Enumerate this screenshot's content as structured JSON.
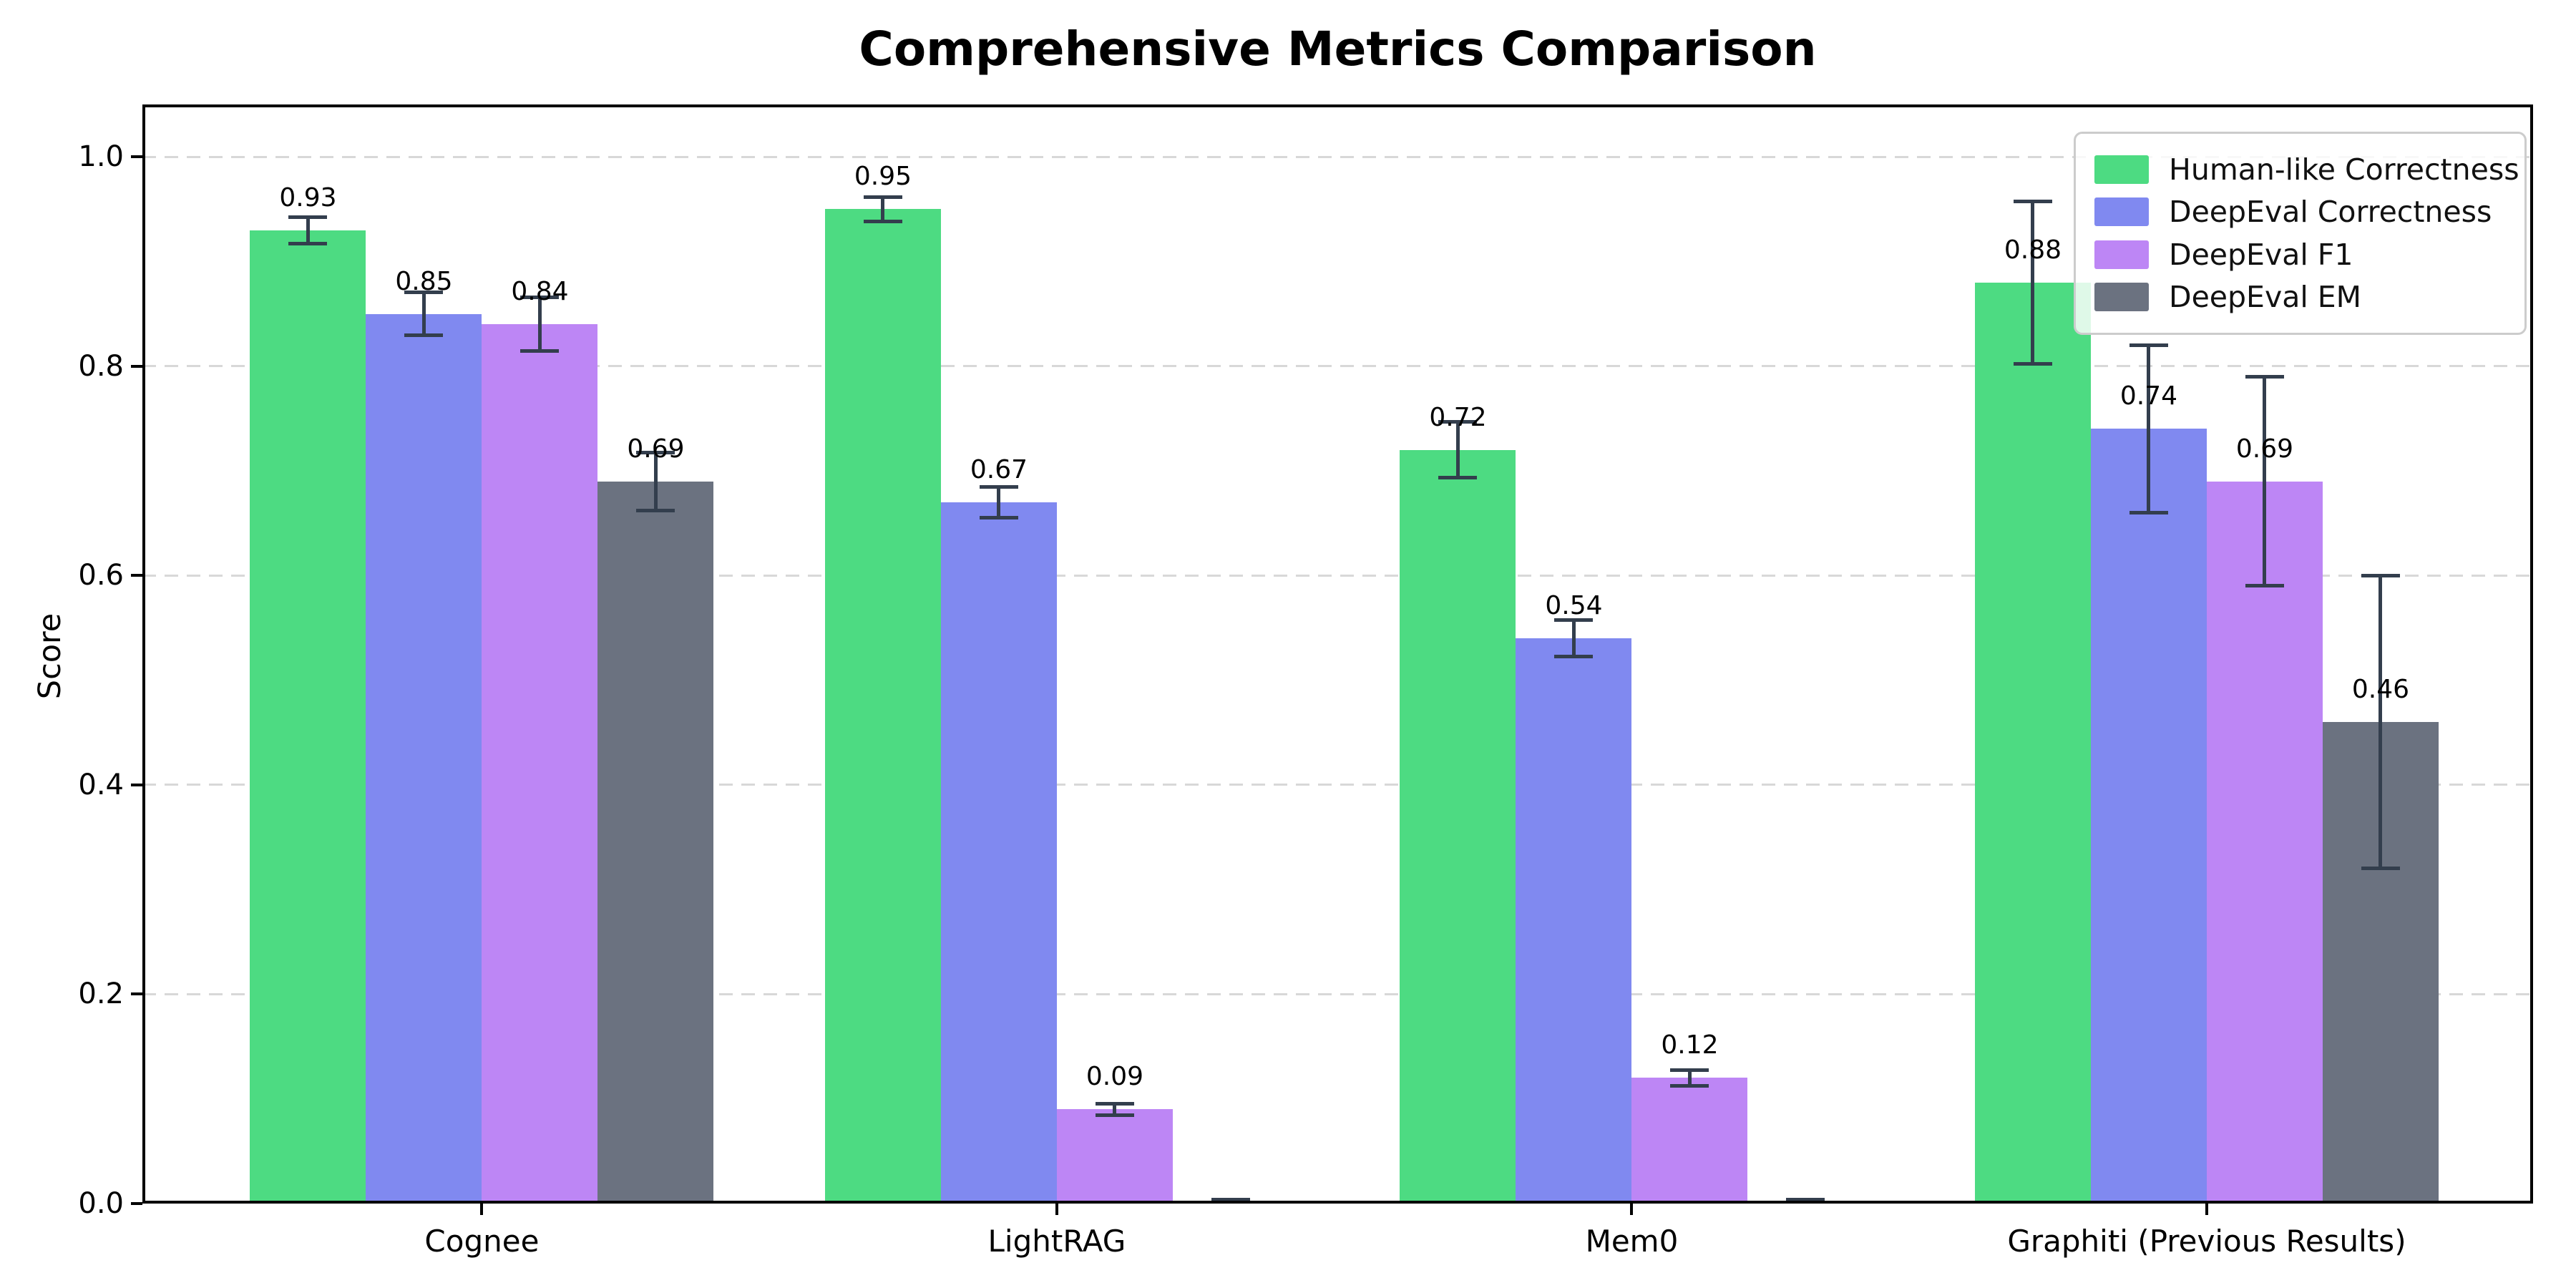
{
  "title": "Comprehensive Metrics Comparison",
  "chart_data": {
    "type": "bar",
    "title": "Comprehensive Metrics Comparison",
    "xlabel": "",
    "ylabel": "Score",
    "ylim": [
      0,
      1.05
    ],
    "yticks": [
      0.0,
      0.2,
      0.4,
      0.6,
      0.8,
      1.0
    ],
    "ytick_labels": [
      "0.0",
      "0.2",
      "0.4",
      "0.6",
      "0.8",
      "1.0"
    ],
    "grid": "horizontal-dashed",
    "legend_position": "upper-right",
    "categories": [
      "Cognee",
      "LightRAG",
      "Mem0",
      "Graphiti (Previous Results)"
    ],
    "series": [
      {
        "name": "Human-like Correctness",
        "color": "#4ddb82",
        "values": [
          0.93,
          0.95,
          0.72,
          0.88
        ],
        "errors": [
          0.013,
          0.012,
          0.027,
          0.078
        ],
        "labels": [
          "0.93",
          "0.95",
          "0.72",
          "0.88"
        ]
      },
      {
        "name": "DeepEval Correctness",
        "color": "#8089f0",
        "values": [
          0.85,
          0.67,
          0.54,
          0.74
        ],
        "errors": [
          0.021,
          0.015,
          0.018,
          0.08
        ],
        "labels": [
          "0.85",
          "0.67",
          "0.54",
          "0.74"
        ]
      },
      {
        "name": "DeepEval F1",
        "color": "#bd86f5",
        "values": [
          0.84,
          0.09,
          0.12,
          0.69
        ],
        "errors": [
          0.026,
          0.006,
          0.008,
          0.1
        ],
        "labels": [
          "0.84",
          "0.09",
          "0.12",
          "0.69"
        ]
      },
      {
        "name": "DeepEval EM",
        "color": "#6b7280",
        "values": [
          0.69,
          0.0,
          0.0,
          0.46
        ],
        "errors": [
          0.028,
          0.004,
          0.004,
          0.14
        ],
        "labels": [
          "0.69",
          null,
          null,
          "0.46"
        ]
      }
    ]
  },
  "colors": {
    "error_bar": "#333e4d",
    "gridline": "#d8d8d8",
    "spine": "#000000",
    "legend_border": "#cccccc",
    "background": "#ffffff"
  }
}
